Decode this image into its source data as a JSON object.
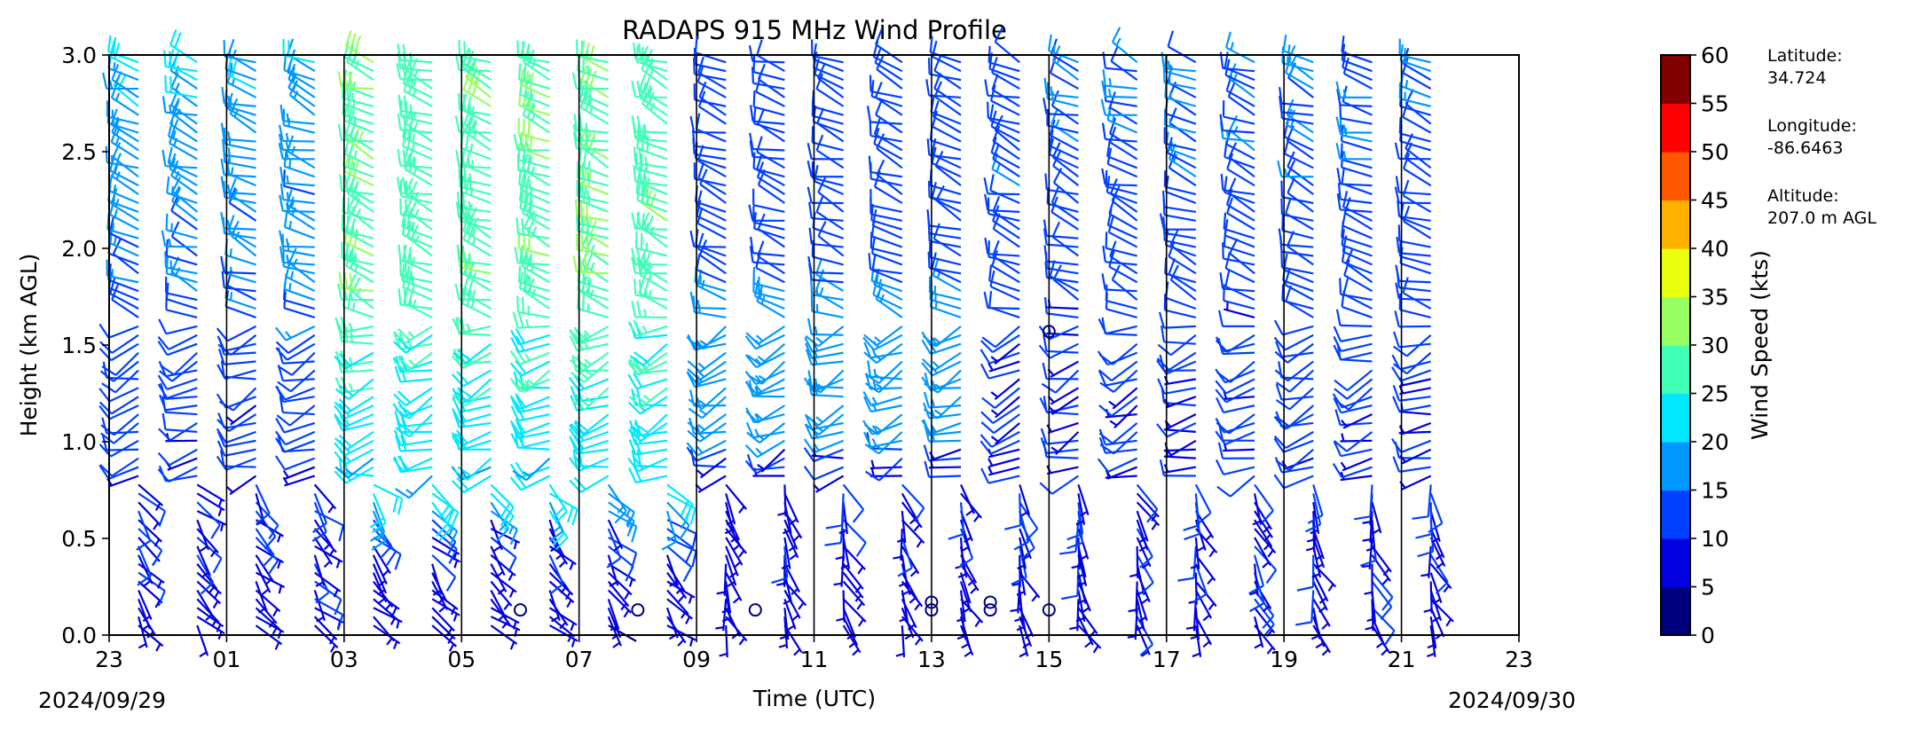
{
  "title": "RADAPS 915 MHz Wind Profile",
  "chart_data": {
    "type": "wind-barb-profile",
    "title": "RADAPS 915 MHz Wind Profile",
    "xlabel": "Time (UTC)",
    "ylabel": "Height (km AGL)",
    "date_start": "2024/09/29",
    "date_end": "2024/09/30",
    "x_tick_labels": [
      "23",
      "01",
      "03",
      "05",
      "07",
      "09",
      "11",
      "13",
      "15",
      "17",
      "19",
      "21",
      "23"
    ],
    "y_tick_labels": [
      "0.0",
      "0.5",
      "1.0",
      "1.5",
      "2.0",
      "2.5",
      "3.0"
    ],
    "ylim": [
      0,
      3
    ],
    "hour_profiles": [
      23.5,
      0.5,
      1.5,
      2.5,
      3.5,
      4.5,
      5.5,
      6.5,
      7.5,
      8.5,
      9.5,
      10.5,
      11.5,
      12.5,
      13.5,
      14.5,
      15.5,
      16.5,
      17.5,
      18.5,
      19.5,
      20.5,
      21.5
    ],
    "calm_markers": [
      {
        "time": 6.0,
        "height": 0.13
      },
      {
        "time": 8.0,
        "height": 0.13
      },
      {
        "time": 10.0,
        "height": 0.13
      },
      {
        "time": 13.0,
        "height": 0.13
      },
      {
        "time": 13.0,
        "height": 0.17
      },
      {
        "time": 14.0,
        "height": 0.13
      },
      {
        "time": 14.0,
        "height": 0.17
      },
      {
        "time": 15.0,
        "height": 0.13
      },
      {
        "time": 15.0,
        "height": 1.57
      }
    ],
    "colorbar": {
      "label": "Wind Speed (kts)",
      "ticks": [
        "0",
        "5",
        "10",
        "15",
        "20",
        "25",
        "30",
        "35",
        "40",
        "45",
        "50",
        "55",
        "60"
      ],
      "colors": [
        "#00007f",
        "#0000e0",
        "#0040ff",
        "#0098ff",
        "#00e8ff",
        "#40ffb7",
        "#97ff60",
        "#e8ff0e",
        "#ffb000",
        "#ff5800",
        "#ff0000",
        "#800000"
      ]
    },
    "grid": false
  },
  "station": {
    "lat_label": "Latitude:",
    "lat_value": "34.724",
    "lon_label": "Longitude:",
    "lon_value": "-86.6463",
    "alt_label": "Altitude:",
    "alt_value": "207.0 m AGL"
  }
}
